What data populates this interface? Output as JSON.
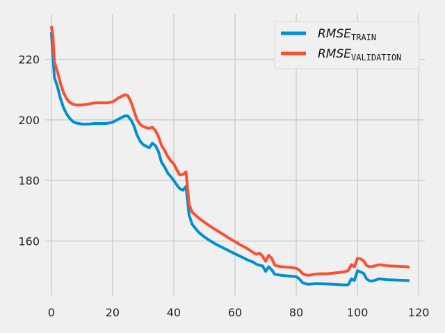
{
  "chart_data": {
    "type": "line",
    "title": "",
    "xlabel": "",
    "ylabel": "",
    "xlim": [
      -2,
      122
    ],
    "ylim": [
      142,
      235
    ],
    "xticks": [
      0,
      20,
      40,
      60,
      80,
      100,
      120
    ],
    "yticks": [
      160,
      180,
      200,
      220
    ],
    "grid": true,
    "legend_position": "top-right",
    "series": [
      {
        "name": "RMSE_TRAIN",
        "label_main": "RMSE",
        "label_sub": "TRAIN",
        "color": "#008fd5",
        "points": [
          [
            0,
            229
          ],
          [
            0.5,
            222
          ],
          [
            1,
            214
          ],
          [
            2,
            211
          ],
          [
            3,
            207
          ],
          [
            4,
            204
          ],
          [
            5,
            202
          ],
          [
            6,
            200.5
          ],
          [
            7,
            199.5
          ],
          [
            8,
            199
          ],
          [
            10,
            198.6
          ],
          [
            12,
            198.6
          ],
          [
            14,
            198.8
          ],
          [
            16,
            198.8
          ],
          [
            18,
            198.8
          ],
          [
            20,
            199.2
          ],
          [
            22,
            200.3
          ],
          [
            24,
            201.3
          ],
          [
            25,
            201.3
          ],
          [
            26,
            200
          ],
          [
            27,
            198
          ],
          [
            28,
            195
          ],
          [
            29,
            193
          ],
          [
            30,
            191.8
          ],
          [
            31,
            191.3
          ],
          [
            32,
            190.8
          ],
          [
            33,
            192.3
          ],
          [
            34,
            191.5
          ],
          [
            35,
            189.5
          ],
          [
            36,
            186
          ],
          [
            37,
            184.5
          ],
          [
            38,
            182.5
          ],
          [
            39,
            181.3
          ],
          [
            40,
            180
          ],
          [
            41,
            178.5
          ],
          [
            42,
            177.3
          ],
          [
            43,
            176.8
          ],
          [
            44,
            178
          ],
          [
            45,
            168.5
          ],
          [
            46,
            165.5
          ],
          [
            48,
            163
          ],
          [
            50,
            161.3
          ],
          [
            52,
            160
          ],
          [
            54,
            158.8
          ],
          [
            56,
            157.8
          ],
          [
            58,
            156.8
          ],
          [
            60,
            155.8
          ],
          [
            62,
            154.8
          ],
          [
            64,
            153.8
          ],
          [
            66,
            153
          ],
          [
            67,
            152.3
          ],
          [
            68,
            152
          ],
          [
            69,
            151.8
          ],
          [
            70,
            150
          ],
          [
            71,
            151.5
          ],
          [
            72,
            150.5
          ],
          [
            73,
            149
          ],
          [
            75,
            148.7
          ],
          [
            78,
            148.4
          ],
          [
            80,
            148.2
          ],
          [
            81,
            147.5
          ],
          [
            82,
            146.3
          ],
          [
            83,
            145.9
          ],
          [
            84,
            145.7
          ],
          [
            86,
            145.9
          ],
          [
            88,
            145.9
          ],
          [
            90,
            145.8
          ],
          [
            92,
            145.7
          ],
          [
            94,
            145.6
          ],
          [
            96,
            145.5
          ],
          [
            97,
            145.6
          ],
          [
            98,
            147.5
          ],
          [
            99,
            147
          ],
          [
            100,
            150.2
          ],
          [
            101,
            149.8
          ],
          [
            102,
            149.3
          ],
          [
            103,
            147.5
          ],
          [
            104,
            146.8
          ],
          [
            105,
            146.8
          ],
          [
            107,
            147.5
          ],
          [
            110,
            147.2
          ],
          [
            113,
            147.1
          ],
          [
            116,
            147
          ],
          [
            117,
            146.9
          ]
        ]
      },
      {
        "name": "RMSE_VALIDATION",
        "label_main": "RMSE",
        "label_sub": "VALIDATION",
        "color": "#fc4f30",
        "points": [
          [
            0,
            231
          ],
          [
            0.5,
            228
          ],
          [
            1,
            219
          ],
          [
            2,
            216
          ],
          [
            3,
            212
          ],
          [
            4,
            209
          ],
          [
            5,
            207
          ],
          [
            6,
            205.8
          ],
          [
            7,
            205.2
          ],
          [
            8,
            204.9
          ],
          [
            10,
            204.9
          ],
          [
            12,
            205.2
          ],
          [
            14,
            205.6
          ],
          [
            16,
            205.6
          ],
          [
            18,
            205.6
          ],
          [
            20,
            205.9
          ],
          [
            22,
            207.3
          ],
          [
            24,
            208.3
          ],
          [
            25,
            208
          ],
          [
            26,
            206
          ],
          [
            27,
            203
          ],
          [
            28,
            200
          ],
          [
            29,
            198.5
          ],
          [
            30,
            197.8
          ],
          [
            31,
            197.4
          ],
          [
            32,
            197.2
          ],
          [
            33,
            197.6
          ],
          [
            34,
            196.5
          ],
          [
            35,
            194.5
          ],
          [
            36,
            191.5
          ],
          [
            37,
            190
          ],
          [
            38,
            188
          ],
          [
            39,
            186.5
          ],
          [
            40,
            185.5
          ],
          [
            41,
            183.5
          ],
          [
            42,
            181.8
          ],
          [
            43,
            182
          ],
          [
            44,
            182.8
          ],
          [
            45,
            172
          ],
          [
            46,
            169.5
          ],
          [
            48,
            167.7
          ],
          [
            50,
            166.2
          ],
          [
            52,
            164.8
          ],
          [
            54,
            163.5
          ],
          [
            56,
            162.3
          ],
          [
            58,
            161
          ],
          [
            60,
            159.8
          ],
          [
            62,
            158.6
          ],
          [
            64,
            157.5
          ],
          [
            66,
            156.2
          ],
          [
            67,
            155.6
          ],
          [
            68,
            156
          ],
          [
            69,
            155
          ],
          [
            70,
            153.3
          ],
          [
            71,
            155.3
          ],
          [
            72,
            154.3
          ],
          [
            73,
            152
          ],
          [
            75,
            151.5
          ],
          [
            78,
            151.3
          ],
          [
            80,
            151
          ],
          [
            81,
            150.4
          ],
          [
            82,
            149.3
          ],
          [
            83,
            148.8
          ],
          [
            84,
            148.7
          ],
          [
            86,
            149
          ],
          [
            88,
            149.2
          ],
          [
            90,
            149.2
          ],
          [
            92,
            149.4
          ],
          [
            94,
            149.6
          ],
          [
            96,
            149.9
          ],
          [
            97,
            150.3
          ],
          [
            98,
            152.2
          ],
          [
            99,
            151.5
          ],
          [
            100,
            154.3
          ],
          [
            101,
            154.1
          ],
          [
            102,
            153.5
          ],
          [
            103,
            151.9
          ],
          [
            104,
            151.5
          ],
          [
            105,
            151.6
          ],
          [
            107,
            152.2
          ],
          [
            110,
            151.8
          ],
          [
            113,
            151.7
          ],
          [
            116,
            151.5
          ],
          [
            117,
            151.3
          ]
        ]
      }
    ]
  }
}
